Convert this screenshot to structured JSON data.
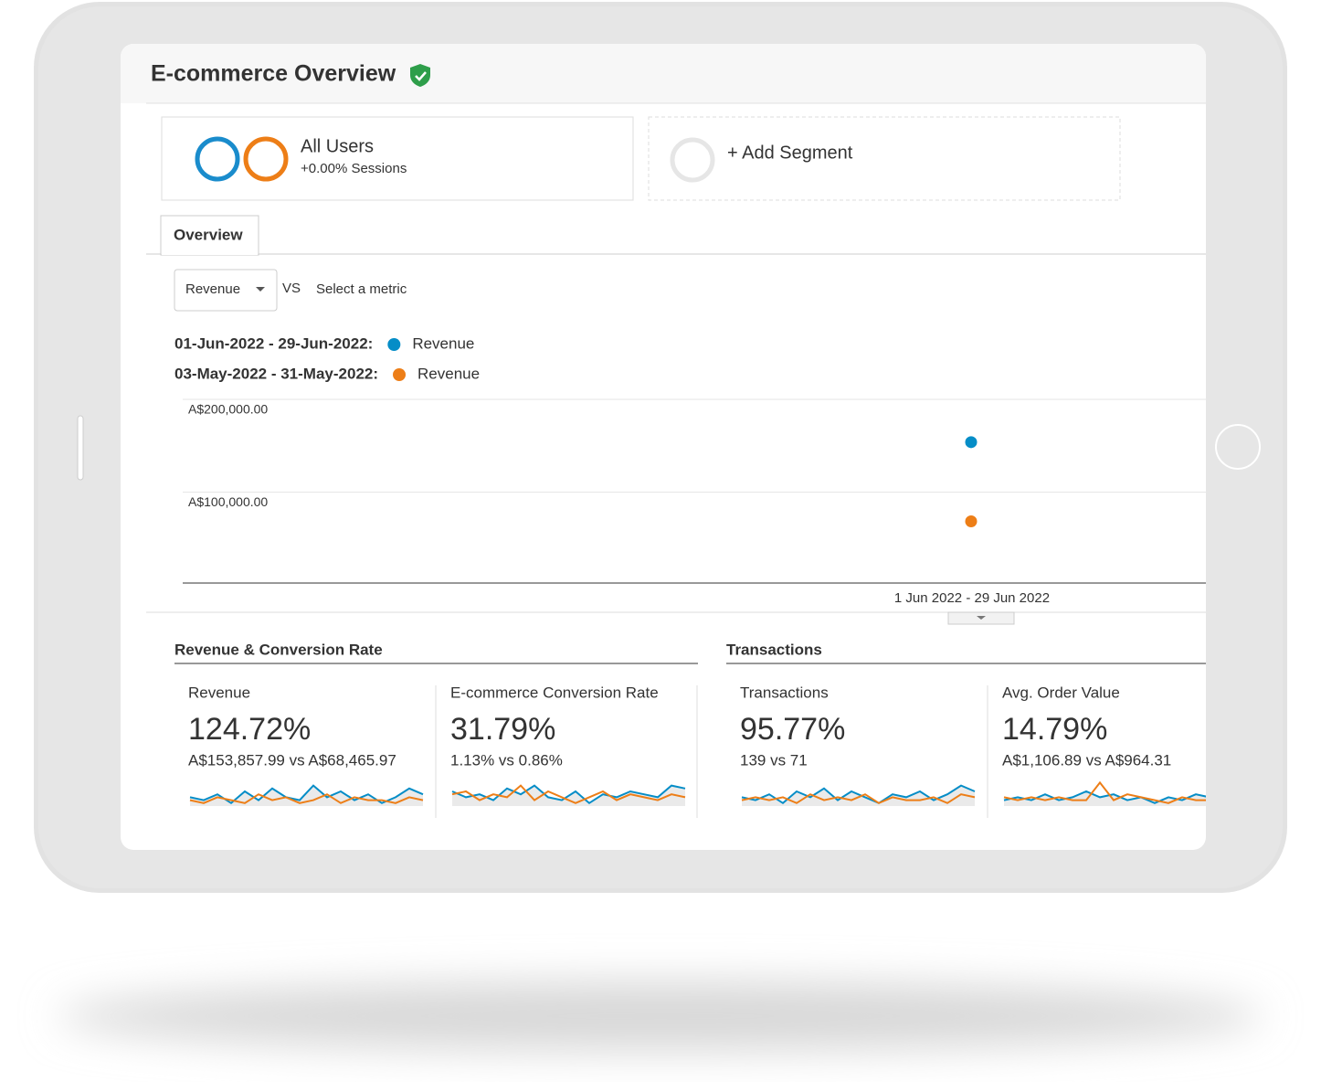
{
  "header": {
    "title": "E-commerce Overview"
  },
  "segments": {
    "all_users": {
      "name": "All Users",
      "detail": "+0.00% Sessions"
    },
    "add": "+ Add Segment"
  },
  "tabs": [
    "Overview"
  ],
  "metric_picker": {
    "metric": "Revenue",
    "vs": "VS",
    "select": "Select a metric"
  },
  "chart_data": {
    "type": "line",
    "categories": [
      "1 Jun 2022 - 29 Jun 2022"
    ],
    "series": [
      {
        "name": "Revenue",
        "range": "01-Jun-2022 - 29-Jun-2022:",
        "color": "#058dc7",
        "values": [
          153857.99
        ]
      },
      {
        "name": "Revenue",
        "range": "03-May-2022 - 31-May-2022:",
        "color": "#ed7e17",
        "values": [
          68465.97
        ]
      }
    ],
    "ylim": [
      0,
      200000
    ],
    "yticks": [
      {
        "value": 100000,
        "label": "A$100,000.00"
      },
      {
        "value": 200000,
        "label": "A$200,000.00"
      }
    ],
    "grid": true
  },
  "sections": [
    {
      "title": "Revenue & Conversion Rate",
      "cards": [
        {
          "label": "Revenue",
          "change": "124.72%",
          "compare": "A$153,857.99 vs A$68,465.97",
          "spark": [
            [
              3,
              2,
              4,
              1,
              5,
              2,
              6,
              3,
              2,
              7,
              3,
              5,
              2,
              4,
              1,
              3,
              6,
              4
            ],
            [
              2,
              1,
              3,
              2,
              1,
              4,
              2,
              3,
              1,
              2,
              4,
              1,
              3,
              2,
              2,
              1,
              3,
              2
            ]
          ]
        },
        {
          "label": "E-commerce Conversion Rate",
          "change": "31.79%",
          "compare": "1.13% vs 0.86%",
          "spark": [
            [
              5,
              3,
              4,
              2,
              6,
              4,
              7,
              3,
              2,
              5,
              1,
              4,
              3,
              5,
              4,
              3,
              7,
              6
            ],
            [
              4,
              5,
              2,
              4,
              3,
              7,
              2,
              5,
              3,
              1,
              3,
              5,
              2,
              4,
              3,
              2,
              4,
              3
            ]
          ]
        },
        {
          "label": "Transactions",
          "change": "95.77%",
          "compare": "139 vs 71",
          "spark": [
            [
              3,
              2,
              4,
              1,
              5,
              3,
              6,
              2,
              5,
              3,
              1,
              4,
              3,
              5,
              2,
              4,
              7,
              5
            ],
            [
              2,
              3,
              2,
              3,
              1,
              4,
              2,
              3,
              2,
              4,
              1,
              3,
              2,
              2,
              3,
              1,
              4,
              3
            ]
          ]
        },
        {
          "label": "Avg. Order Value",
          "change": "14.79%",
          "compare": "A$1,106.89 vs A$964.31",
          "spark": [
            [
              2,
              3,
              2,
              4,
              2,
              3,
              5,
              3,
              4,
              2,
              3,
              1,
              3,
              2,
              4,
              3,
              2,
              1
            ],
            [
              3,
              2,
              3,
              2,
              3,
              2,
              2,
              8,
              2,
              4,
              3,
              2,
              1,
              3,
              2,
              2,
              3,
              1
            ]
          ]
        }
      ]
    },
    {
      "title": "Transactions"
    }
  ]
}
